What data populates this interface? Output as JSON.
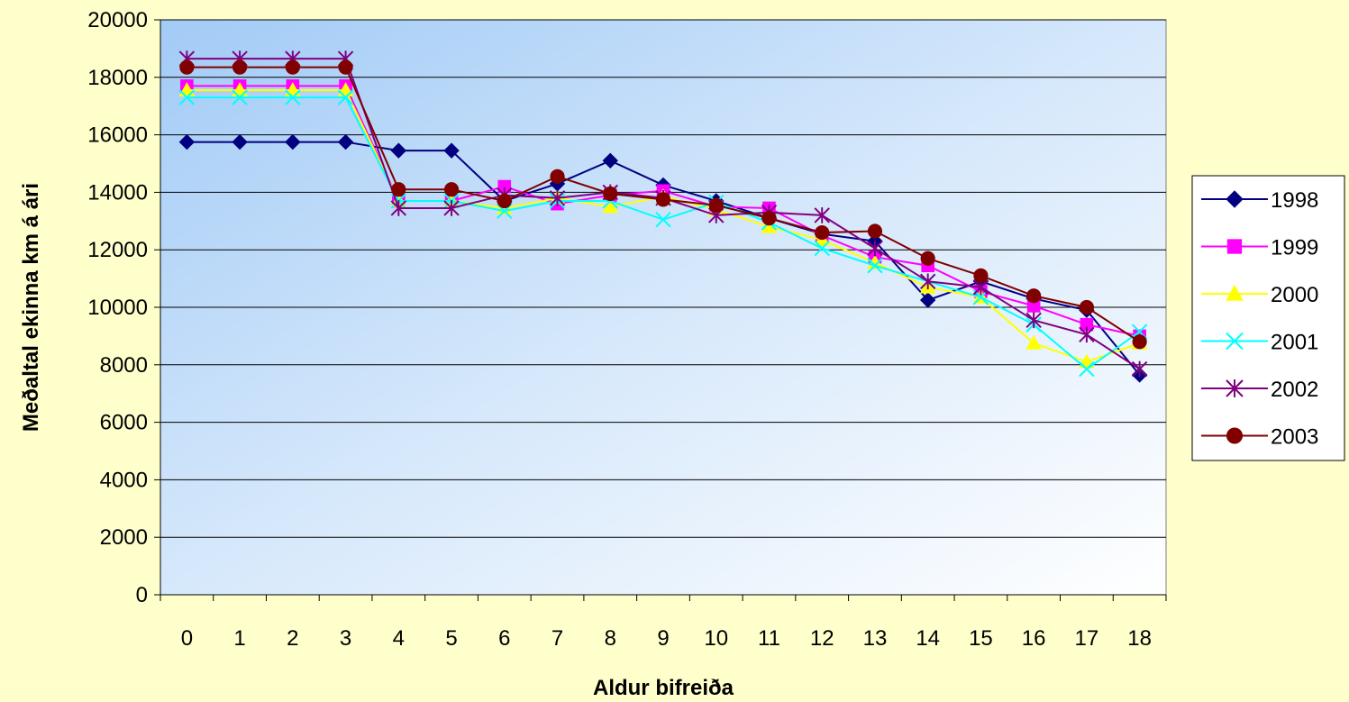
{
  "chart_data": {
    "type": "line",
    "title": "",
    "xlabel": "Aldur bifreiða",
    "ylabel": "Meðaltal ekinna km á ári",
    "x": [
      "0",
      "1",
      "2",
      "3",
      "4",
      "5",
      "6",
      "7",
      "8",
      "9",
      "10",
      "11",
      "12",
      "13",
      "14",
      "15",
      "16",
      "17",
      "18"
    ],
    "ylim": [
      0,
      20000
    ],
    "yticks": [
      "0",
      "2000",
      "4000",
      "6000",
      "8000",
      "10000",
      "12000",
      "14000",
      "16000",
      "18000",
      "20000"
    ],
    "grid": "horizontal",
    "legend_position": "right",
    "background": "#FFFFCC",
    "series": [
      {
        "name": "1998",
        "color": "#000080",
        "marker": "diamond",
        "values": [
          15750,
          15750,
          15750,
          15750,
          15450,
          15450,
          13700,
          14300,
          15100,
          14250,
          13700,
          13100,
          12550,
          12300,
          10250,
          10900,
          10300,
          9900,
          7650
        ]
      },
      {
        "name": "1999",
        "color": "#FF00FF",
        "marker": "square",
        "values": [
          17700,
          17700,
          17700,
          17700,
          13700,
          13700,
          14200,
          13600,
          13900,
          14050,
          13500,
          13450,
          12500,
          11750,
          11450,
          10550,
          10050,
          9400,
          9000
        ]
      },
      {
        "name": "2000",
        "color": "#FFFF00",
        "marker": "triangle",
        "values": [
          17550,
          17550,
          17550,
          17550,
          13700,
          13700,
          13450,
          13800,
          13500,
          13850,
          13400,
          12800,
          12350,
          11550,
          10700,
          10350,
          8750,
          8100,
          8750
        ]
      },
      {
        "name": "2001",
        "color": "#00FFFF",
        "marker": "x",
        "values": [
          17300,
          17300,
          17300,
          17300,
          13700,
          13700,
          13350,
          13700,
          13700,
          13050,
          13650,
          12950,
          12050,
          11450,
          10900,
          10350,
          9400,
          7850,
          9150
        ]
      },
      {
        "name": "2002",
        "color": "#800080",
        "marker": "star",
        "values": [
          18650,
          18650,
          18650,
          18650,
          13450,
          13450,
          13900,
          13800,
          14000,
          13800,
          13200,
          13300,
          13200,
          12050,
          10900,
          10700,
          9550,
          9050,
          7850
        ]
      },
      {
        "name": "2003",
        "color": "#800000",
        "marker": "circle",
        "values": [
          18350,
          18350,
          18350,
          18350,
          14100,
          14100,
          13700,
          14550,
          13950,
          13750,
          13550,
          13100,
          12600,
          12650,
          11700,
          11100,
          10400,
          10000,
          8800
        ]
      }
    ]
  }
}
